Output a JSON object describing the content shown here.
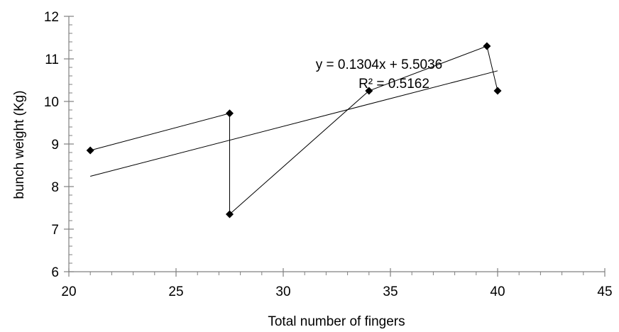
{
  "chart_data": {
    "type": "scatter",
    "xlabel": "Total number of fingers",
    "ylabel": "bunch weight (Kg)",
    "xlim": [
      20,
      45
    ],
    "ylim": [
      6,
      12
    ],
    "x_ticks": [
      20,
      25,
      30,
      35,
      40,
      45
    ],
    "y_ticks": [
      6,
      7,
      8,
      9,
      10,
      11,
      12
    ],
    "x_minor_step": 1,
    "y_minor_step": 0.2,
    "grid": false,
    "series": [
      {
        "points": [
          {
            "x": 21,
            "y": 8.85
          },
          {
            "x": 27.5,
            "y": 9.72
          },
          {
            "x": 27.5,
            "y": 7.35
          },
          {
            "x": 34,
            "y": 10.25
          },
          {
            "x": 39.5,
            "y": 11.3
          },
          {
            "x": 40,
            "y": 10.25
          }
        ],
        "marker": "diamond",
        "connected": true,
        "color": "#000000"
      }
    ],
    "trendline": {
      "slope": 0.1304,
      "intercept": 5.5036,
      "x_range": [
        21,
        40
      ],
      "equation": "y = 0.1304x + 5.5036",
      "r_squared": "R² = 0.5162"
    }
  }
}
